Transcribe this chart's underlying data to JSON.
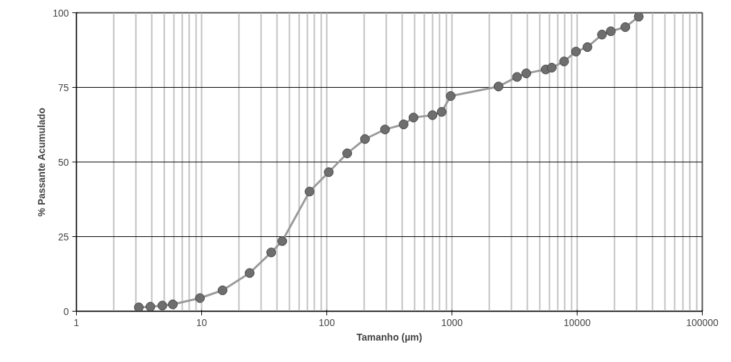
{
  "chart_data": {
    "type": "line",
    "xlabel": "Tamanho (µm)",
    "ylabel": "% Passante Acumulado",
    "log": "x",
    "x": [
      3.15,
      3.9,
      4.86,
      5.89,
      9.7,
      14.7,
      24.2,
      36,
      44.1,
      72.8,
      103.7,
      145.6,
      202,
      292,
      411,
      493,
      699,
      828,
      977,
      2355,
      3311,
      3925,
      5610,
      6270,
      7870,
      9790,
      12090,
      15800,
      18580,
      24270,
      31060
    ],
    "series": [
      {
        "color": "#6e6e6e",
        "values": [
          1.3,
          1.5,
          1.9,
          2.3,
          4.4,
          7.0,
          12.8,
          19.7,
          23.5,
          40.1,
          46.6,
          52.9,
          57.7,
          60.9,
          62.6,
          64.9,
          65.7,
          66.8,
          72.1,
          75.3,
          78.5,
          79.7,
          81.0,
          81.6,
          83.7,
          87.0,
          88.5,
          92.7,
          93.8,
          95.2,
          98.7
        ]
      }
    ],
    "xlim": [
      1,
      100000
    ],
    "xticks": [
      1,
      10,
      100,
      1000,
      10000,
      100000
    ],
    "ylim": [
      0,
      100
    ],
    "yticks": [
      0,
      25,
      50,
      75,
      100
    ],
    "grid": true,
    "marker": "circle",
    "line_style": "solid"
  }
}
